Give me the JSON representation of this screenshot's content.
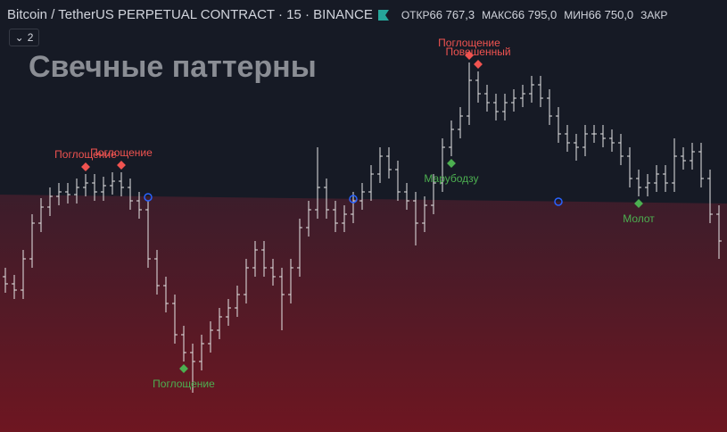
{
  "header": {
    "symbol": "Bitcoin / TetherUS PERPETUAL CONTRACT · 15 · BINANCE",
    "stats": [
      {
        "label": "ОТКР",
        "value": "66 767,3"
      },
      {
        "label": "МАКС",
        "value": "66 795,0"
      },
      {
        "label": "МИН",
        "value": "66 750,0"
      },
      {
        "label": "ЗАКР",
        "value": ""
      }
    ],
    "indicator_count": "2"
  },
  "chart_data": {
    "type": "ohlc",
    "title": "Свечные паттерны",
    "color": "#e6e6e6",
    "ylim": [
      66446,
      66900
    ],
    "open": [
      66620,
      66612,
      66605,
      66640,
      66680,
      66698,
      66710,
      66715,
      66712,
      66720,
      66725,
      66715,
      66722,
      66727,
      66720,
      66705,
      66695,
      66640,
      66610,
      66590,
      66555,
      66535,
      66525,
      66545,
      66560,
      66575,
      66585,
      66600,
      66630,
      66650,
      66630,
      66620,
      66600,
      66630,
      66675,
      66695,
      66720,
      66695,
      66680,
      66690,
      66705,
      66715,
      66735,
      66755,
      66740,
      66715,
      66705,
      66680,
      66700,
      66725,
      66765,
      66785,
      66800,
      66840,
      66825,
      66815,
      66805,
      66815,
      66820,
      66825,
      66835,
      66820,
      66800,
      66780,
      66770,
      66765,
      66780,
      66780,
      66775,
      66770,
      66755,
      66730,
      66720,
      66725,
      66735,
      66725,
      66755,
      66750,
      66760,
      66730,
      66690
    ],
    "high": [
      66630,
      66622,
      66650,
      66690,
      66708,
      66720,
      66725,
      66725,
      66730,
      66735,
      66735,
      66732,
      66737,
      66737,
      66730,
      66715,
      66705,
      66650,
      66620,
      66600,
      66565,
      66545,
      66555,
      66570,
      66585,
      66595,
      66610,
      66640,
      66660,
      66660,
      66640,
      66630,
      66640,
      66685,
      66705,
      66765,
      66730,
      66705,
      66700,
      66715,
      66725,
      66745,
      66765,
      66765,
      66750,
      66725,
      66715,
      66710,
      66735,
      66775,
      66795,
      66810,
      66860,
      66850,
      66835,
      66825,
      66825,
      66830,
      66835,
      66845,
      66845,
      66830,
      66810,
      66790,
      66780,
      66790,
      66790,
      66790,
      66785,
      66780,
      66765,
      66740,
      66735,
      66745,
      66745,
      66775,
      66765,
      66770,
      66770,
      66740,
      66700
    ],
    "low": [
      66602,
      66595,
      66595,
      66630,
      66670,
      66688,
      66700,
      66702,
      66702,
      66710,
      66705,
      66705,
      66712,
      66710,
      66695,
      66685,
      66630,
      66600,
      66580,
      66545,
      66525,
      66490,
      66515,
      66535,
      66550,
      66565,
      66575,
      66590,
      66620,
      66620,
      66610,
      66560,
      66590,
      66620,
      66665,
      66685,
      66685,
      66670,
      66670,
      66680,
      66695,
      66705,
      66725,
      66730,
      66705,
      66695,
      66655,
      66670,
      66690,
      66715,
      66755,
      66775,
      66790,
      66815,
      66805,
      66795,
      66795,
      66805,
      66810,
      66815,
      66810,
      66790,
      66770,
      66760,
      66750,
      66755,
      66770,
      66765,
      66760,
      66745,
      66720,
      66710,
      66710,
      66715,
      66715,
      66715,
      66740,
      66740,
      66720,
      66680,
      66640
    ],
    "close": [
      66612,
      66605,
      66640,
      66680,
      66698,
      66710,
      66715,
      66712,
      66720,
      66725,
      66715,
      66722,
      66727,
      66720,
      66705,
      66695,
      66640,
      66610,
      66590,
      66555,
      66535,
      66525,
      66545,
      66560,
      66575,
      66585,
      66600,
      66630,
      66650,
      66630,
      66620,
      66600,
      66630,
      66675,
      66695,
      66720,
      66695,
      66680,
      66690,
      66705,
      66715,
      66735,
      66755,
      66740,
      66715,
      66705,
      66680,
      66700,
      66725,
      66765,
      66785,
      66800,
      66840,
      66825,
      66815,
      66805,
      66815,
      66820,
      66825,
      66835,
      66820,
      66800,
      66780,
      66770,
      66765,
      66780,
      66780,
      66775,
      66770,
      66755,
      66730,
      66720,
      66725,
      66735,
      66725,
      66755,
      66750,
      66760,
      66730,
      66690,
      66660
    ],
    "signals": [
      {
        "x": 9,
        "label": "Поглощение",
        "side": "above",
        "color": "#f05350"
      },
      {
        "x": 13,
        "label": "Поглощение",
        "side": "above",
        "color": "#f05350"
      },
      {
        "x": 52,
        "label": "Поглощение",
        "side": "above",
        "color": "#f05350"
      },
      {
        "x": 53,
        "label": "Повешенный",
        "side": "above",
        "color": "#f05350"
      },
      {
        "x": 50,
        "label": "Марубодзу",
        "side": "below",
        "color": "#4caf50"
      },
      {
        "x": 20,
        "label": "Поглощение",
        "side": "below",
        "color": "#4caf50"
      },
      {
        "x": 71,
        "label": "Молот",
        "side": "below",
        "color": "#4caf50"
      }
    ],
    "dots": [
      {
        "x": 16,
        "value": 66709
      },
      {
        "x": 39,
        "value": 66707
      },
      {
        "x": 62,
        "value": 66704
      }
    ]
  }
}
